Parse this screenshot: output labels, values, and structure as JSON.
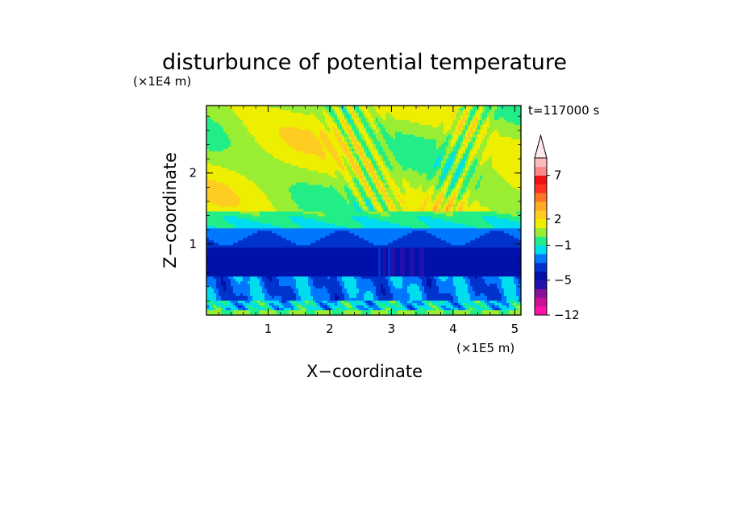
{
  "chart_data": {
    "type": "heatmap",
    "title": "disturbunce of potential temperature",
    "time_label": "t=117000 s",
    "xlabel": "X−coordinate",
    "ylabel": "Z−coordinate",
    "x_unit": "(×1E5 m)",
    "y_unit": "(×1E4 m)",
    "xlim": [
      0,
      5.1
    ],
    "ylim": [
      0,
      2.95
    ],
    "x_ticks": [
      {
        "value": 1,
        "label": "1"
      },
      {
        "value": 2,
        "label": "2"
      },
      {
        "value": 3,
        "label": "3"
      },
      {
        "value": 4,
        "label": "4"
      },
      {
        "value": 5,
        "label": "5"
      }
    ],
    "y_ticks": [
      {
        "value": 1,
        "label": "1"
      },
      {
        "value": 2,
        "label": "2"
      }
    ],
    "colorbar": {
      "colors": [
        "#ff11aa",
        "#cc1199",
        "#881199",
        "#2211aa",
        "#0011aa",
        "#0033cc",
        "#0077ff",
        "#00ddee",
        "#22ee88",
        "#99ee33",
        "#eeee00",
        "#ffcc22",
        "#ffaa22",
        "#ff7722",
        "#ff3322",
        "#ee1111",
        "#ff8888",
        "#ffbbbb"
      ],
      "extend_max_color": "#ffe8ec",
      "labels": [
        {
          "value": -12,
          "label": "−12"
        },
        {
          "value": -5,
          "label": "−5"
        },
        {
          "value": -1,
          "label": "−1"
        },
        {
          "value": 2,
          "label": "2"
        },
        {
          "value": 7,
          "label": "7"
        }
      ]
    }
  }
}
